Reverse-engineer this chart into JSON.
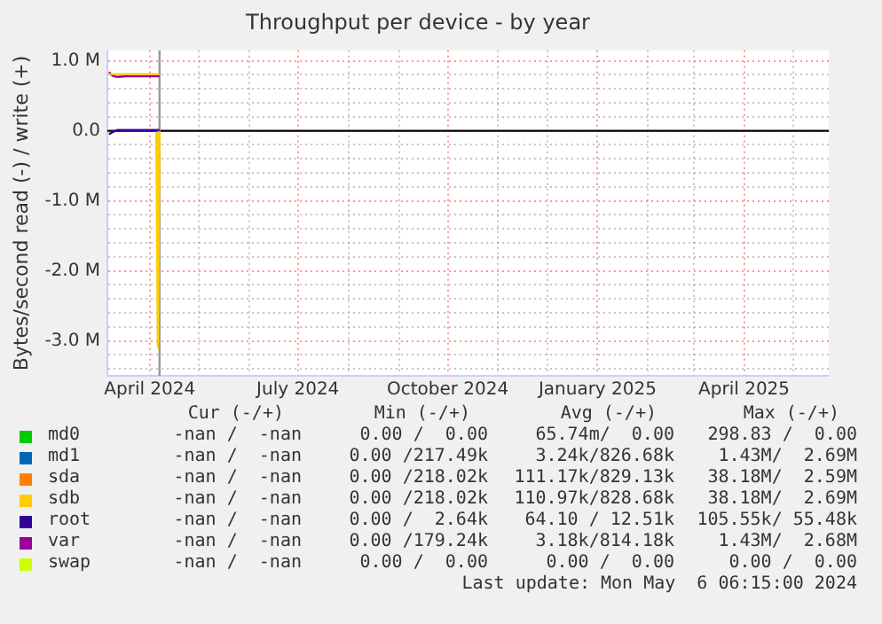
{
  "chart_data": {
    "type": "line",
    "title": "Throughput per device - by year",
    "ylabel": "Bytes/second read (-) / write (+)",
    "x": [
      "2024-03-07",
      "2024-03-09",
      "2024-03-12",
      "2024-03-18",
      "2024-03-25",
      "2024-04-01",
      "2024-04-04",
      "2024-04-05",
      "2024-04-06",
      "2024-04-07"
    ],
    "series": [
      {
        "name": "md0",
        "color": "#00cc00",
        "values": [
          null,
          null,
          null,
          null,
          null,
          null,
          null,
          null,
          null,
          null
        ]
      },
      {
        "name": "md1",
        "color": "#0066b3",
        "values": [
          null,
          null,
          null,
          null,
          null,
          null,
          null,
          null,
          null,
          null
        ]
      },
      {
        "name": "sda",
        "color": "#ff8000",
        "values": [
          null,
          null,
          null,
          null,
          null,
          null,
          null,
          null,
          null,
          null
        ]
      },
      {
        "name": "sdb",
        "color": "#ffcc00",
        "values": [
          810000,
          810000,
          810000,
          810000,
          810000,
          810000,
          810000,
          810000,
          810000,
          810000
        ]
      },
      {
        "color": "#ffcc00",
        "values": [
          null,
          null,
          null,
          null,
          null,
          null,
          null,
          -20000,
          -3100000,
          -20000
        ]
      },
      {
        "name": "root",
        "color": "#330099",
        "values": [
          -50000,
          -20000,
          10000,
          10000,
          10000,
          10000,
          10000,
          10000,
          10000,
          10000
        ]
      },
      {
        "name": "var",
        "color": "#990099",
        "values": [
          840000,
          790000,
          770000,
          780000,
          780000,
          780000,
          780000,
          780000,
          780000,
          780000
        ]
      },
      {
        "name": "swap",
        "color": "#ccff00",
        "values": [
          null,
          null,
          null,
          null,
          null,
          null,
          null,
          null,
          null,
          null
        ]
      }
    ],
    "xlim": [
      "2024-03-06",
      "2025-05-23"
    ],
    "xticks": [
      {
        "value": "2024-04-01",
        "label": "April 2024"
      },
      {
        "value": "2024-05-01",
        "label": null
      },
      {
        "value": "2024-06-01",
        "label": null
      },
      {
        "value": "2024-07-01",
        "label": "July 2024"
      },
      {
        "value": "2024-08-01",
        "label": null
      },
      {
        "value": "2024-09-01",
        "label": null
      },
      {
        "value": "2024-10-01",
        "label": "October 2024"
      },
      {
        "value": "2024-11-01",
        "label": null
      },
      {
        "value": "2024-12-01",
        "label": null
      },
      {
        "value": "2025-01-01",
        "label": "January 2025"
      },
      {
        "value": "2025-02-01",
        "label": null
      },
      {
        "value": "2025-03-01",
        "label": null
      },
      {
        "value": "2025-04-01",
        "label": "April 2025"
      },
      {
        "value": "2025-05-01",
        "label": null
      }
    ],
    "ylim": [
      -3500000,
      1150000
    ],
    "yticks": [
      {
        "value": -3400000,
        "label": null
      },
      {
        "value": -3200000,
        "label": null
      },
      {
        "value": -3000000,
        "label": "-3.0 M"
      },
      {
        "value": -2800000,
        "label": null
      },
      {
        "value": -2600000,
        "label": null
      },
      {
        "value": -2400000,
        "label": null
      },
      {
        "value": -2200000,
        "label": null
      },
      {
        "value": -2000000,
        "label": "-2.0 M"
      },
      {
        "value": -1800000,
        "label": null
      },
      {
        "value": -1600000,
        "label": null
      },
      {
        "value": -1400000,
        "label": null
      },
      {
        "value": -1200000,
        "label": null
      },
      {
        "value": -1000000,
        "label": "-1.0 M"
      },
      {
        "value": -800000,
        "label": null
      },
      {
        "value": -600000,
        "label": null
      },
      {
        "value": -400000,
        "label": null
      },
      {
        "value": -200000,
        "label": null
      },
      {
        "value": 0,
        "label": "0.0"
      },
      {
        "value": 200000,
        "label": null
      },
      {
        "value": 400000,
        "label": null
      },
      {
        "value": 600000,
        "label": null
      },
      {
        "value": 800000,
        "label": null
      },
      {
        "value": 1000000,
        "label": "1.0 M"
      }
    ],
    "ref_lines": [
      {
        "axis": "y",
        "value": 0,
        "color": "#000000"
      },
      {
        "axis": "x",
        "value": "2024-04-07",
        "color": "#999999"
      }
    ],
    "grid": true,
    "legend": "bottom",
    "marker": "none",
    "line_style": "solid",
    "annotations": [
      "Cur (-/+)",
      "Min (-/+)",
      "Avg (-/+)",
      "Max (-/+)",
      "-nan /  -nan",
      "0.00 /  0.00",
      "65.74m/  0.00",
      "298.83 /  0.00",
      "-nan /  -nan",
      "0.00 /217.49k",
      "3.24k/826.68k",
      "1.43M/  2.69M",
      "-nan /  -nan",
      "0.00 /218.02k",
      "111.17k/829.13k",
      "38.18M/  2.59M",
      "-nan /  -nan",
      "0.00 /218.02k",
      "110.97k/828.68k",
      "38.18M/  2.69M",
      "-nan /  -nan",
      "0.00 /  2.64k",
      "64.10 / 12.51k",
      "105.55k/ 55.48k",
      "-nan /  -nan",
      "0.00 /179.24k",
      "3.18k/814.18k",
      "1.43M/  2.68M",
      "-nan /  -nan",
      "0.00 /  0.00",
      "0.00 /  0.00",
      "0.00 /  0.00",
      "Last update: Mon May  6 06:15:00 2024"
    ]
  }
}
